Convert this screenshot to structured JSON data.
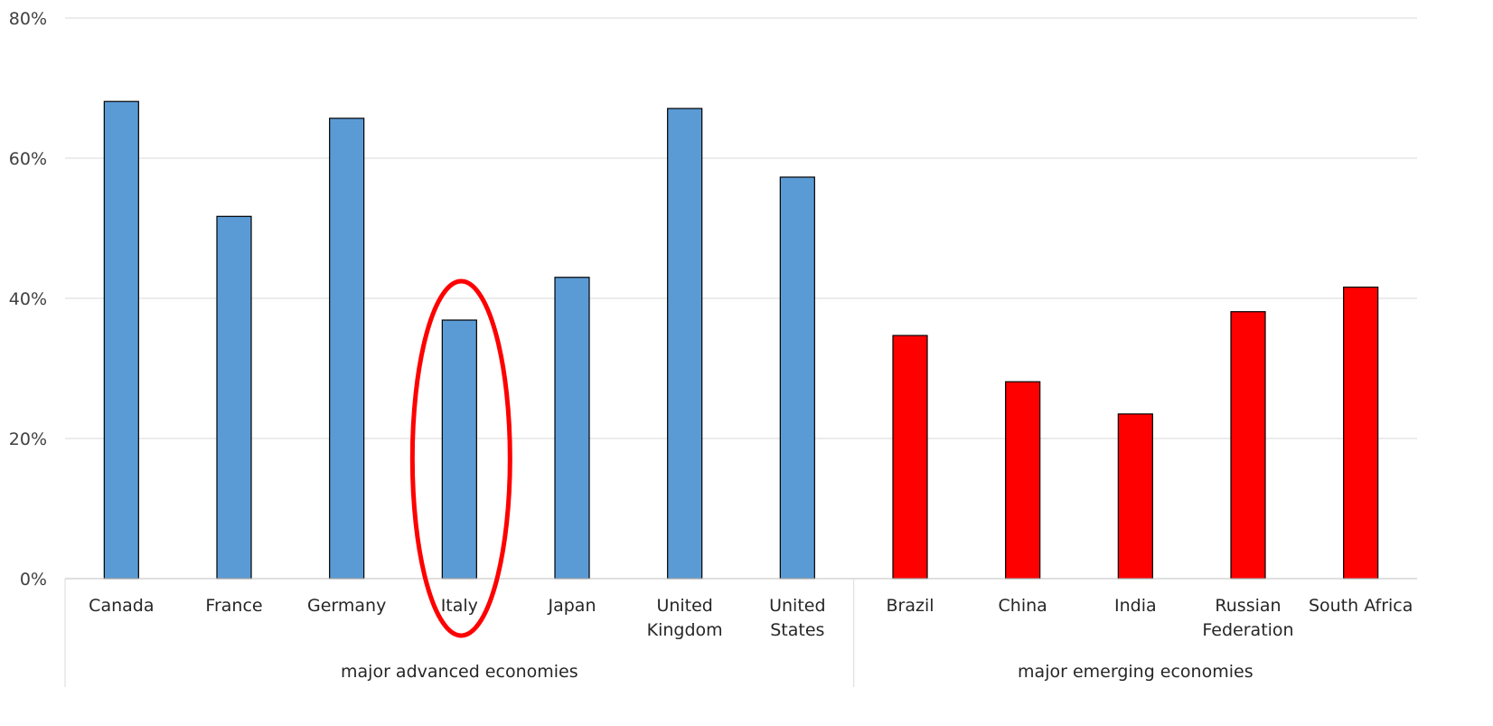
{
  "chart_data": {
    "type": "bar",
    "ylim": [
      0,
      80
    ],
    "yticks": [
      0,
      20,
      40,
      60,
      80
    ],
    "ytick_labels": [
      "0%",
      "20%",
      "40%",
      "60%",
      "80%"
    ],
    "grid": true,
    "categories": [
      "Canada",
      "France",
      "Germany",
      "Italy",
      "Japan",
      "United Kingdom",
      "United States",
      "Brazil",
      "China",
      "India",
      "Russian Federation",
      "South Africa"
    ],
    "category_label_lines": [
      [
        "Canada"
      ],
      [
        "France"
      ],
      [
        "Germany"
      ],
      [
        "Italy"
      ],
      [
        "Japan"
      ],
      [
        "United",
        "Kingdom"
      ],
      [
        "United",
        "States"
      ],
      [
        "Brazil"
      ],
      [
        "China"
      ],
      [
        "India"
      ],
      [
        "Russian",
        "Federation"
      ],
      [
        "South Africa"
      ]
    ],
    "values": [
      68.1,
      51.7,
      65.7,
      36.9,
      43.0,
      67.1,
      57.3,
      34.7,
      28.1,
      23.5,
      38.1,
      41.6
    ],
    "groups": [
      {
        "label": "major advanced economies",
        "count": 7,
        "color": "#5B9BD5"
      },
      {
        "label": "major emerging economies",
        "count": 5,
        "color": "#FF0000"
      }
    ],
    "highlight": {
      "category": "Italy",
      "shape": "ellipse",
      "color": "#FF0000"
    },
    "xlabel": "",
    "ylabel": "",
    "title": ""
  }
}
